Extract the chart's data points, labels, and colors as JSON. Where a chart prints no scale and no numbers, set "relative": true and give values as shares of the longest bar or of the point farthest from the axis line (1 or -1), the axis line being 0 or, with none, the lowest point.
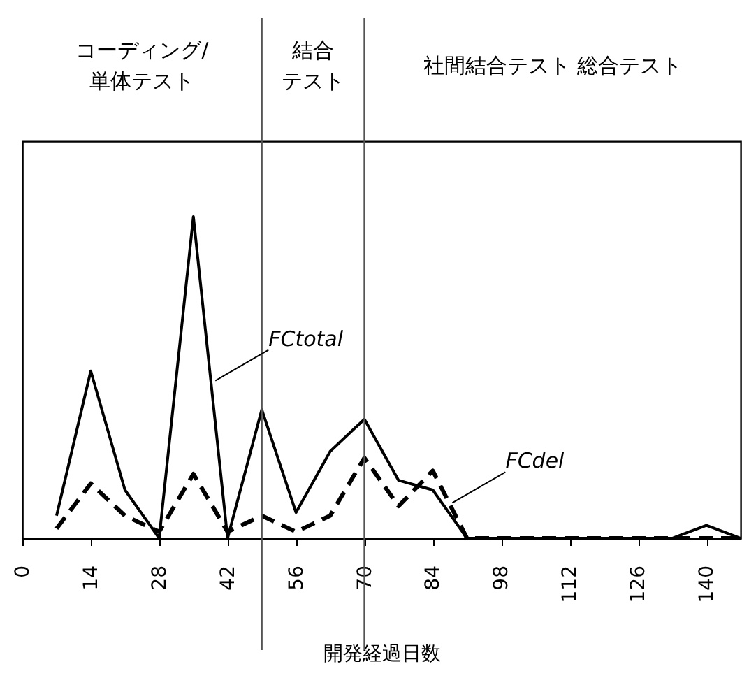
{
  "chart_data": {
    "type": "line",
    "relative": true,
    "xlabel": "開発経過日数",
    "x": [
      7,
      14,
      21,
      28,
      35,
      42,
      49,
      56,
      63,
      70,
      77,
      84,
      91,
      98,
      105,
      112,
      119,
      126,
      133,
      140,
      147
    ],
    "series": [
      {
        "color": "#000000",
        "line_style": "solid",
        "values": [
          0.07,
          0.52,
          0.15,
          0,
          1,
          0,
          0.4,
          0.08,
          0.27,
          0.37,
          0.18,
          0.15,
          0,
          0,
          0,
          0,
          0,
          0,
          0,
          0.04,
          0
        ]
      },
      {
        "color": "#000000",
        "line_style": "dashed",
        "values": [
          0.03,
          0.17,
          0.07,
          0.02,
          0.2,
          0.02,
          0.07,
          0.02,
          0.07,
          0.25,
          0.1,
          0.21,
          0,
          0,
          0,
          0,
          0,
          0,
          0,
          0,
          0
        ]
      }
    ],
    "xlim": [
      0,
      147
    ],
    "xticks": [
      0,
      14,
      28,
      42,
      56,
      70,
      84,
      98,
      112,
      126,
      140
    ],
    "ref_lines": [
      {
        "axis": "x",
        "value": 49
      },
      {
        "axis": "x",
        "value": 70
      }
    ],
    "annotations": [
      {
        "text": "FCtotal",
        "x": 39.5,
        "y": 0.49
      },
      {
        "text": "FCdel",
        "x": 88,
        "y": 0.11
      },
      "コーディング/単体テスト",
      "結合テスト",
      "社間結合テスト 総合テスト"
    ],
    "grid": false
  }
}
